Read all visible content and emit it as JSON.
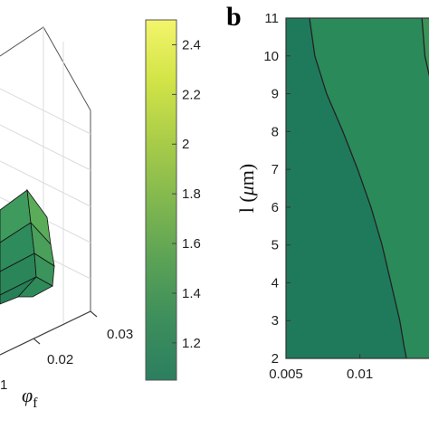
{
  "chart_data": [
    {
      "panel": "a",
      "type": "surface",
      "panel_label_visible": false,
      "xlabel_symbol": "φ",
      "xlabel_subscript": "f",
      "x_ticks": [
        "0.03",
        "0.02",
        "0.01"
      ],
      "x_tick_values": [
        0.03,
        0.02,
        0.01
      ],
      "x_tick_partial": "1",
      "zlim": [
        1.05,
        2.5
      ],
      "surface_z_levels": [
        1.2,
        1.3,
        1.4,
        1.5
      ]
    },
    {
      "type": "colorbar",
      "ticks": [
        "2.4",
        "2.2",
        "2",
        "1.8",
        "1.6",
        "1.4",
        "1.2"
      ],
      "tick_values": [
        2.4,
        2.2,
        2.0,
        1.8,
        1.6,
        1.4,
        1.2
      ],
      "range": [
        1.05,
        2.5
      ],
      "colormap": [
        "#2b7f5f",
        "#3d8e5c",
        "#5ba256",
        "#82b84f",
        "#aacd48",
        "#d2e447",
        "#f3f56b"
      ]
    },
    {
      "panel": "b",
      "type": "contour",
      "panel_label": "b",
      "xlabel": "",
      "ylabel_prefix": "l",
      "ylabel_symbol": "μ",
      "ylabel_unit": "m",
      "y_ticks": [
        "11",
        "10",
        "9",
        "8",
        "7",
        "6",
        "5",
        "4",
        "3",
        "2"
      ],
      "y_tick_values": [
        11,
        10,
        9,
        8,
        7,
        6,
        5,
        4,
        3,
        2
      ],
      "x_ticks": [
        "0.005",
        "0.01"
      ],
      "x_tick_values": [
        0.005,
        0.01
      ],
      "xlim": [
        0.005,
        0.0148
      ],
      "ylim": [
        2,
        11
      ],
      "region_values": [
        1.08,
        1.2,
        1.3
      ],
      "region_colors": [
        "#1f7a5c",
        "#2b8a5a",
        "#3a9457"
      ],
      "contour_lines": [
        {
          "level": 1.15,
          "x": [
            0.00659,
            0.00695,
            0.00775,
            0.00885,
            0.00985,
            0.01075,
            0.0115,
            0.0121,
            0.0127,
            0.013,
            0.01315
          ],
          "y": [
            11,
            10,
            9,
            8,
            7,
            6,
            5,
            4,
            3,
            2.3,
            2
          ]
        },
        {
          "level": 1.25,
          "x": [
            0.0142,
            0.0144,
            0.0148
          ],
          "y": [
            11,
            10,
            9.3
          ]
        }
      ]
    }
  ]
}
